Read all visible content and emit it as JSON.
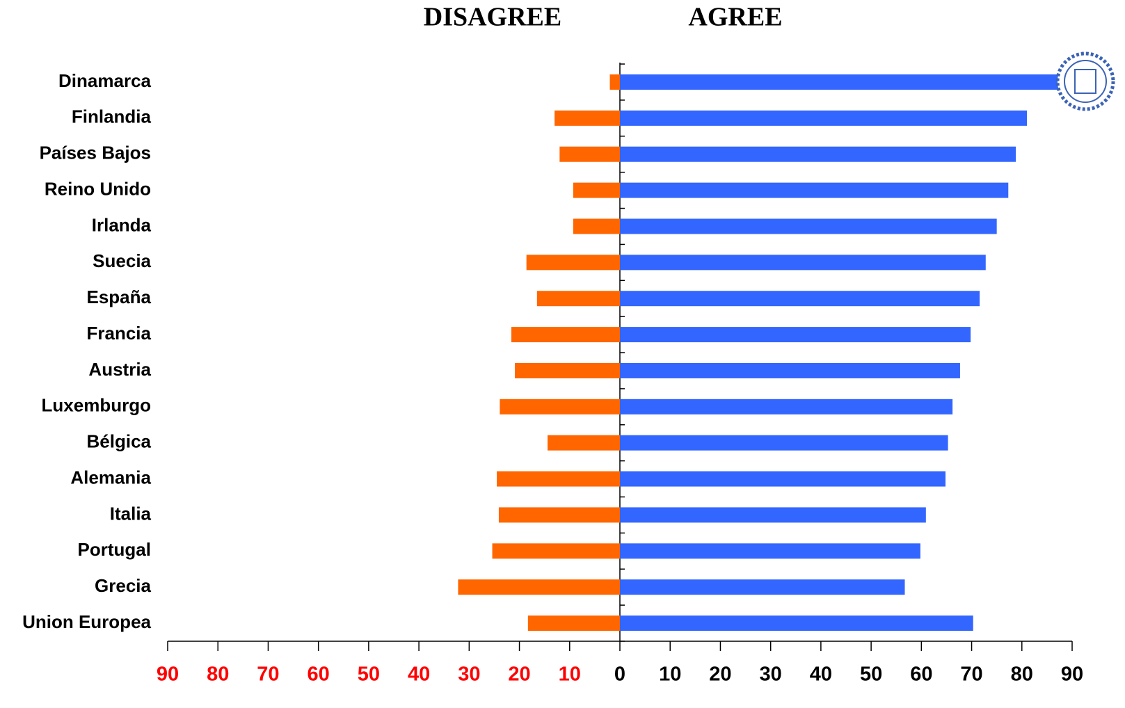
{
  "chart_data": {
    "type": "diverging-bar",
    "categories": [
      "Dinamarca",
      "Finlandia",
      "Países Bajos",
      "Reino Unido",
      "Irlanda",
      "Suecia",
      "España",
      "Francia",
      "Austria",
      "Luxemburgo",
      "Bélgica",
      "Alemania",
      "Italia",
      "Portugal",
      "Grecia",
      "Union Europea"
    ],
    "series": [
      {
        "name": "DISAGREE",
        "color": "#ff6600",
        "direction": "left",
        "values": [
          2,
          13,
          12,
          9.3,
          9.3,
          18.6,
          16.5,
          21.6,
          20.9,
          23.9,
          14.4,
          24.5,
          24.1,
          25.4,
          32.2,
          18.3
        ]
      },
      {
        "name": "AGREE",
        "color": "#3366ff",
        "direction": "right",
        "values": [
          88,
          81,
          78.8,
          77.3,
          75,
          72.8,
          71.6,
          69.8,
          67.7,
          66.2,
          65.3,
          64.8,
          60.9,
          59.8,
          56.7,
          70.3
        ]
      }
    ],
    "xlim": [
      -90,
      90
    ],
    "xticks": [
      {
        "value": -90,
        "label": "90"
      },
      {
        "value": -80,
        "label": "80"
      },
      {
        "value": -70,
        "label": "70"
      },
      {
        "value": -60,
        "label": "60"
      },
      {
        "value": -50,
        "label": "50"
      },
      {
        "value": -40,
        "label": "40"
      },
      {
        "value": -30,
        "label": "30"
      },
      {
        "value": -20,
        "label": "20"
      },
      {
        "value": -10,
        "label": "10"
      },
      0,
      10,
      20,
      30,
      40,
      50,
      60,
      70,
      80,
      90
    ],
    "negative_tick_color": "#ff0000"
  }
}
